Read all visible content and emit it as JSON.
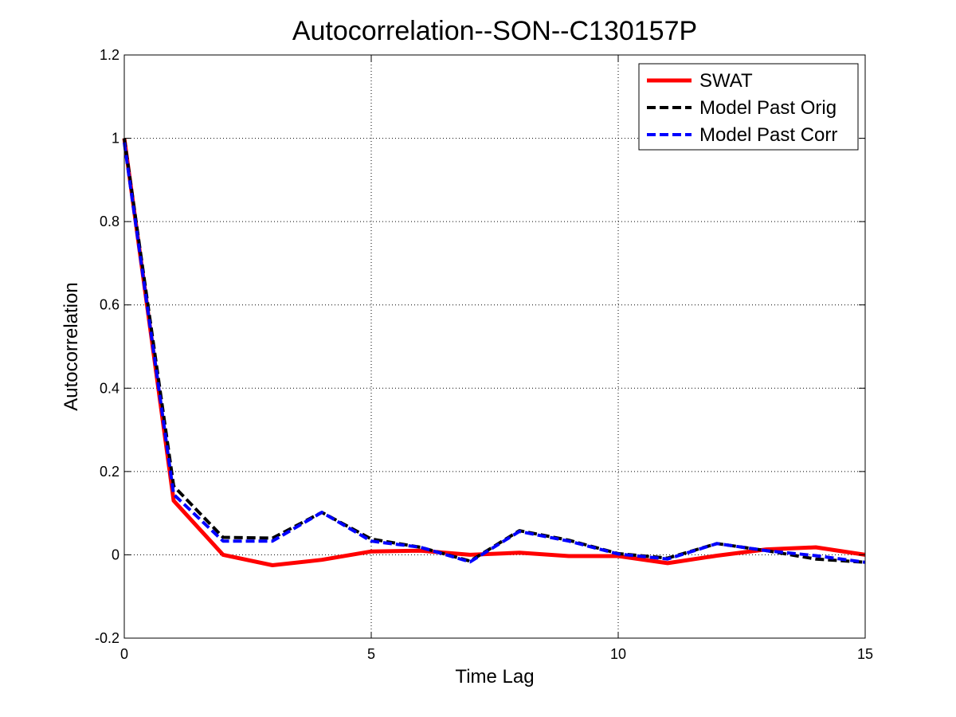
{
  "chart_data": {
    "type": "line",
    "title": "Autocorrelation--SON--C130157P",
    "xlabel": "Time Lag",
    "ylabel": "Autocorrelation",
    "xlim": [
      0,
      15
    ],
    "ylim": [
      -0.2,
      1.2
    ],
    "x_ticks": [
      0,
      5,
      10,
      15
    ],
    "y_ticks": [
      -0.2,
      0,
      0.2,
      0.4,
      0.6,
      0.8,
      1,
      1.2
    ],
    "x_tick_labels": [
      "0",
      "5",
      "10",
      "15"
    ],
    "y_tick_labels": [
      "-0.2",
      "0",
      "0.2",
      "0.4",
      "0.6",
      "0.8",
      "1",
      "1.2"
    ],
    "grid": true,
    "legend_position": "top-right",
    "x": [
      0,
      1,
      2,
      3,
      4,
      5,
      6,
      7,
      8,
      9,
      10,
      11,
      12,
      13,
      14,
      15
    ],
    "series": [
      {
        "name": "SWAT",
        "color": "#ff0000",
        "style": "solid",
        "values": [
          1.0,
          0.13,
          0.0,
          -0.025,
          -0.012,
          0.008,
          0.01,
          0.0,
          0.005,
          -0.003,
          -0.003,
          -0.02,
          -0.002,
          0.013,
          0.018,
          0.0
        ]
      },
      {
        "name": "Model Past Orig",
        "color": "#000000",
        "style": "dashed",
        "values": [
          1.0,
          0.165,
          0.042,
          0.04,
          0.102,
          0.038,
          0.018,
          -0.015,
          0.058,
          0.035,
          0.003,
          -0.008,
          0.027,
          0.01,
          -0.01,
          -0.018
        ]
      },
      {
        "name": "Model Past Corr",
        "color": "#0000ff",
        "style": "dashed",
        "values": [
          0.99,
          0.145,
          0.033,
          0.033,
          0.102,
          0.033,
          0.018,
          -0.017,
          0.056,
          0.033,
          0.002,
          -0.01,
          0.027,
          0.01,
          -0.002,
          -0.018
        ]
      }
    ]
  }
}
